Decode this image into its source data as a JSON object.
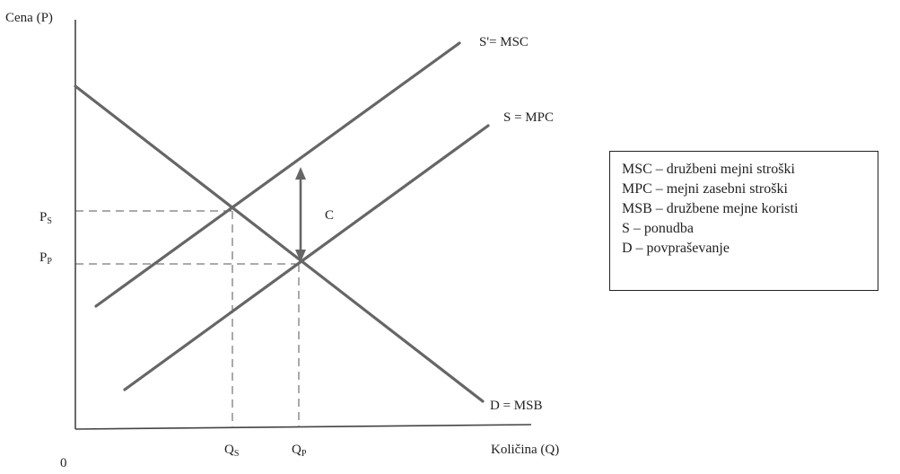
{
  "diagram": {
    "y_axis_label": "Cena (P)",
    "x_axis_label": "Količina (Q)",
    "origin_label": "0",
    "curves": [
      {
        "id": "msc",
        "label": "S'= MSC"
      },
      {
        "id": "mpc",
        "label": "S = MPC"
      },
      {
        "id": "demand",
        "label": "D = MSB"
      }
    ],
    "price_labels": {
      "ps": {
        "main": "P",
        "sub": "S"
      },
      "pp": {
        "main": "P",
        "sub": "P"
      }
    },
    "quantity_labels": {
      "qs": {
        "main": "Q",
        "sub": "S"
      },
      "qp": {
        "main": "Q",
        "sub": "P"
      }
    },
    "gap_label": "C"
  },
  "legend": {
    "items": [
      "MSC – družbeni mejni stroški",
      "MPC – mejni zasebni stroški",
      "MSB – družbene mejne koristi",
      "S – ponudba",
      "D – povpraševanje"
    ]
  },
  "colors": {
    "curve": "#666666",
    "axis": "#444444",
    "text": "#222222"
  }
}
